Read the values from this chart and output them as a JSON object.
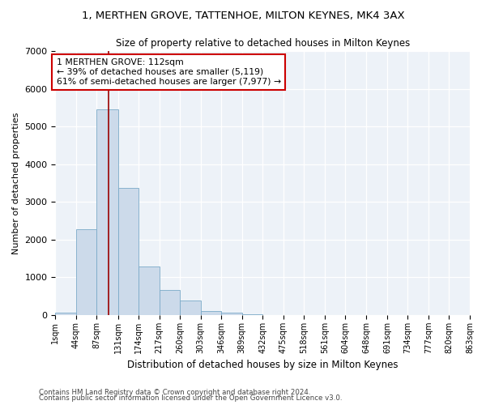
{
  "title": "1, MERTHEN GROVE, TATTENHOE, MILTON KEYNES, MK4 3AX",
  "subtitle": "Size of property relative to detached houses in Milton Keynes",
  "xlabel": "Distribution of detached houses by size in Milton Keynes",
  "ylabel": "Number of detached properties",
  "footnote1": "Contains HM Land Registry data © Crown copyright and database right 2024.",
  "footnote2": "Contains public sector information licensed under the Open Government Licence v3.0.",
  "annotation_line1": "1 MERTHEN GROVE: 112sqm",
  "annotation_line2": "← 39% of detached houses are smaller (5,119)",
  "annotation_line3": "61% of semi-detached houses are larger (7,977) →",
  "property_size": 112,
  "bar_color": "#ccdaea",
  "bar_edge_color": "#7aaac8",
  "vline_color": "#990000",
  "annotation_box_color": "#ffffff",
  "annotation_box_edgecolor": "#cc0000",
  "background_color": "#edf2f8",
  "ylim": [
    0,
    7000
  ],
  "bin_edges": [
    1,
    44,
    87,
    131,
    174,
    217,
    260,
    303,
    346,
    389,
    432,
    475,
    518,
    561,
    604,
    648,
    691,
    734,
    777,
    820,
    863
  ],
  "bar_heights": [
    70,
    2280,
    5450,
    3380,
    1290,
    670,
    380,
    110,
    55,
    20,
    10,
    5,
    3,
    2,
    1,
    1,
    0,
    0,
    0,
    0
  ],
  "tick_labels": [
    "1sqm",
    "44sqm",
    "87sqm",
    "131sqm",
    "174sqm",
    "217sqm",
    "260sqm",
    "303sqm",
    "346sqm",
    "389sqm",
    "432sqm",
    "475sqm",
    "518sqm",
    "561sqm",
    "604sqm",
    "648sqm",
    "691sqm",
    "734sqm",
    "777sqm",
    "820sqm",
    "863sqm"
  ]
}
